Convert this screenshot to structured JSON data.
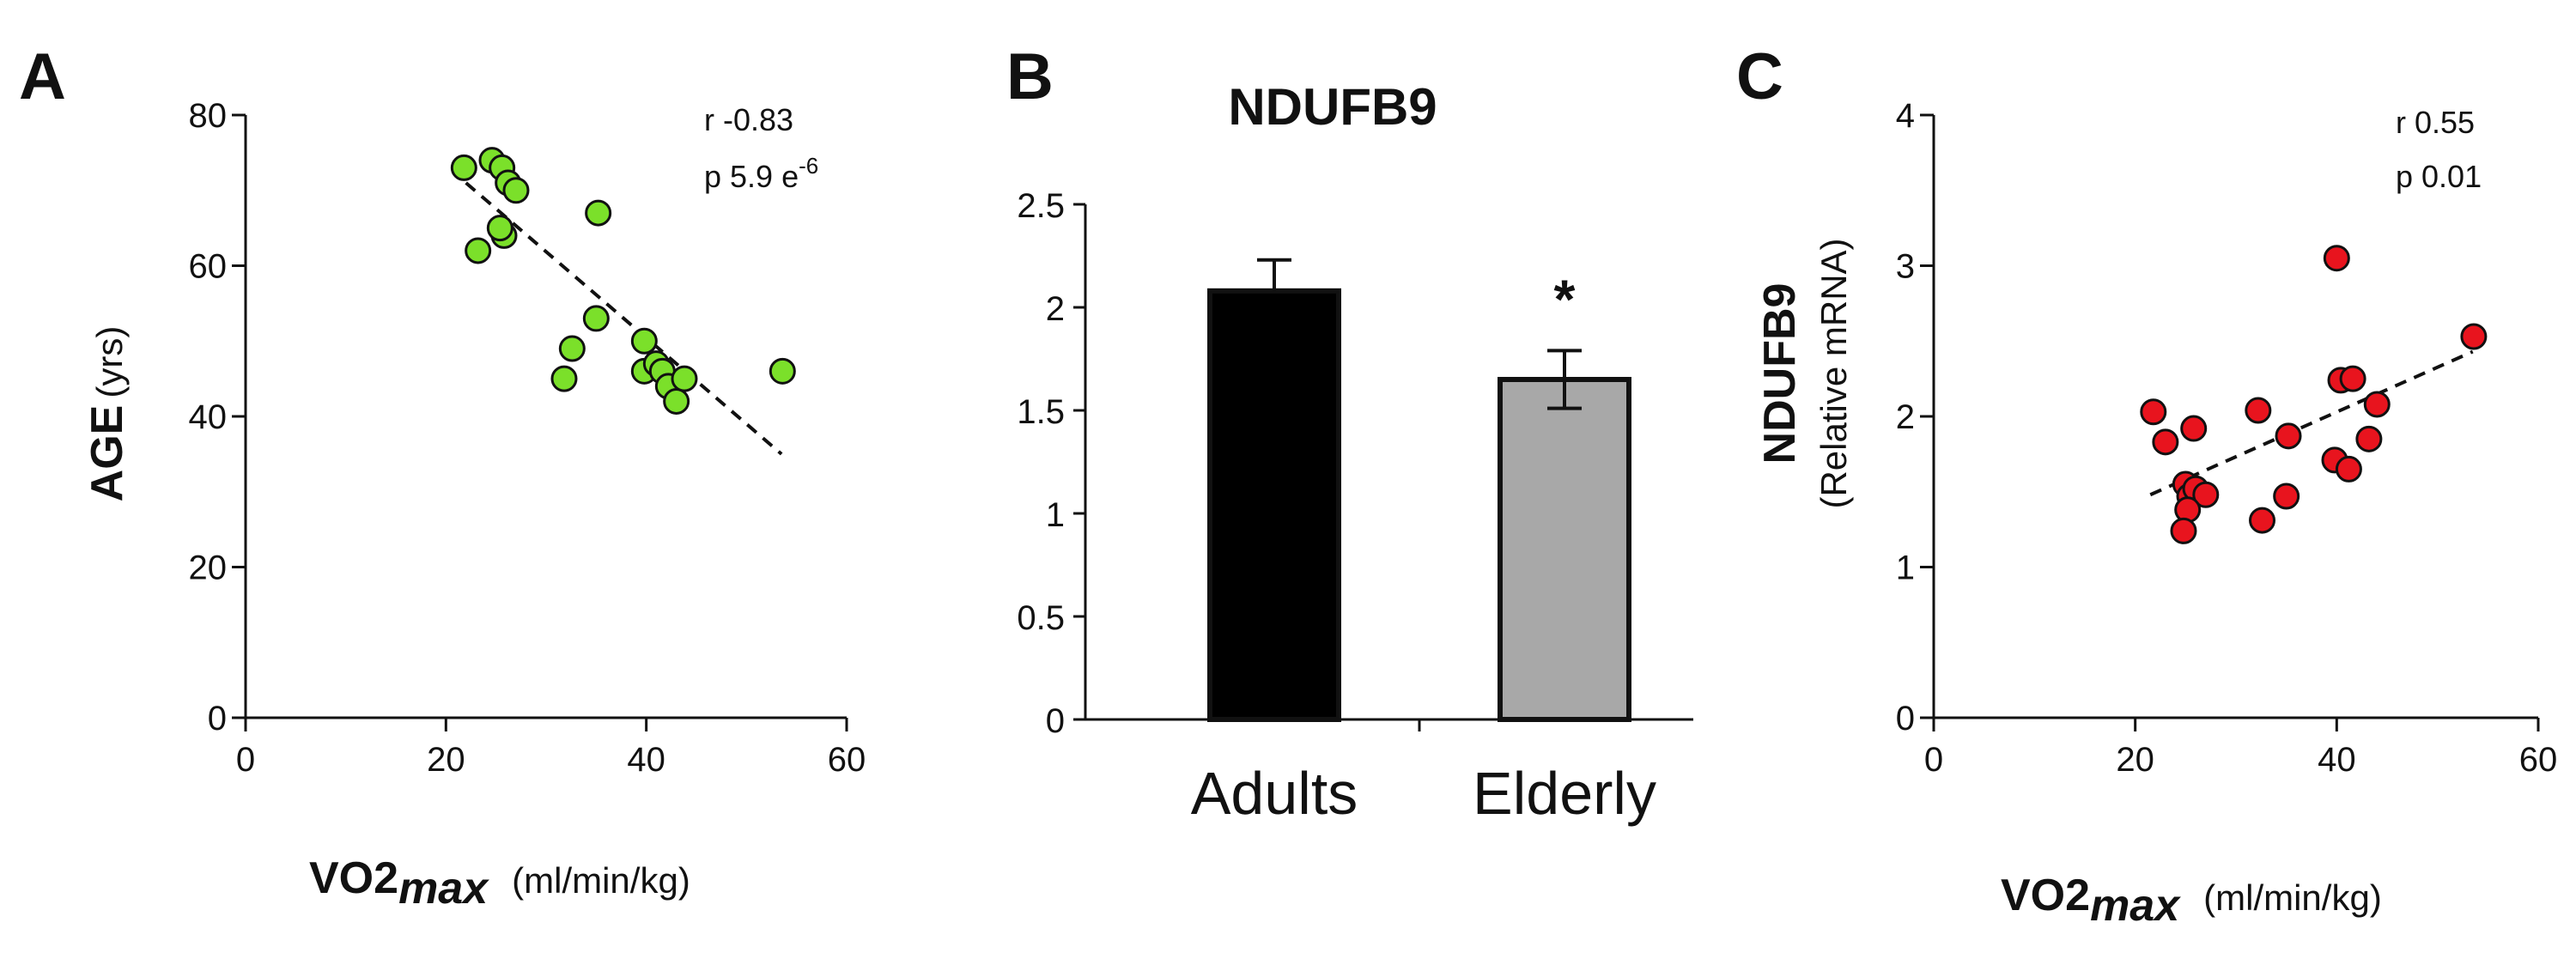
{
  "panels": {
    "A": {
      "letter": "A"
    },
    "B": {
      "letter": "B"
    },
    "C": {
      "letter": "C"
    }
  },
  "chart_data": [
    {
      "type": "scatter",
      "panel": "A",
      "title": "",
      "ylabel_main": "AGE",
      "ylabel_unit": "(yrs)",
      "xlabel_main": "VO2",
      "xlabel_sub": "max",
      "xlabel_unit": "(ml/min/kg)",
      "xlim": [
        0,
        60
      ],
      "ylim": [
        0,
        80
      ],
      "xticks": [
        "0",
        "20",
        "40",
        "60"
      ],
      "yticks": [
        "0",
        "20",
        "40",
        "60",
        "80"
      ],
      "stat_r": "r -0.83",
      "stat_p": "p 5.9 e",
      "stat_p_exp": "-6",
      "point_color": "#7be02a",
      "points": [
        {
          "x": 21.8,
          "y": 73
        },
        {
          "x": 24.6,
          "y": 74
        },
        {
          "x": 25.6,
          "y": 73
        },
        {
          "x": 26.2,
          "y": 71
        },
        {
          "x": 27.0,
          "y": 70
        },
        {
          "x": 23.2,
          "y": 62
        },
        {
          "x": 25.8,
          "y": 64
        },
        {
          "x": 25.4,
          "y": 65
        },
        {
          "x": 35.2,
          "y": 67
        },
        {
          "x": 35.0,
          "y": 53
        },
        {
          "x": 32.6,
          "y": 49
        },
        {
          "x": 31.8,
          "y": 45
        },
        {
          "x": 39.8,
          "y": 50
        },
        {
          "x": 39.8,
          "y": 46
        },
        {
          "x": 41.0,
          "y": 47
        },
        {
          "x": 41.6,
          "y": 46
        },
        {
          "x": 42.2,
          "y": 44
        },
        {
          "x": 43.0,
          "y": 42
        },
        {
          "x": 43.8,
          "y": 45
        },
        {
          "x": 53.6,
          "y": 46
        }
      ],
      "trend": {
        "x1": 22,
        "y1": 71,
        "x2": 53.5,
        "y2": 35
      }
    },
    {
      "type": "bar",
      "panel": "B",
      "title": "NDUFB9",
      "categories": [
        "Adults",
        "Elderly"
      ],
      "values": [
        2.08,
        1.65
      ],
      "errors": [
        0.15,
        0.14
      ],
      "colors": [
        "#000000",
        "#a8a8a8"
      ],
      "ylim": [
        0,
        2.5
      ],
      "yticks": [
        "0",
        "0.5",
        "1",
        "1.5",
        "2",
        "2.5"
      ],
      "significance": "*"
    },
    {
      "type": "scatter",
      "panel": "C",
      "title": "",
      "ylabel_main": "NDUFB9",
      "ylabel_unit": "(Relative mRNA)",
      "xlabel_main": "VO2",
      "xlabel_sub": "max",
      "xlabel_unit": "(ml/min/kg)",
      "xlim": [
        0,
        60
      ],
      "ylim": [
        0,
        4
      ],
      "xticks": [
        "0",
        "20",
        "40",
        "60"
      ],
      "yticks": [
        "0",
        "1",
        "2",
        "3",
        "4"
      ],
      "stat_r": "r 0.55",
      "stat_p": "p 0.01",
      "point_color": "#e8141e",
      "points": [
        {
          "x": 21.8,
          "y": 2.03
        },
        {
          "x": 23.0,
          "y": 1.83
        },
        {
          "x": 25.8,
          "y": 1.92
        },
        {
          "x": 25.0,
          "y": 1.55
        },
        {
          "x": 25.4,
          "y": 1.47
        },
        {
          "x": 26.0,
          "y": 1.52
        },
        {
          "x": 27.0,
          "y": 1.48
        },
        {
          "x": 25.2,
          "y": 1.38
        },
        {
          "x": 24.8,
          "y": 1.24
        },
        {
          "x": 32.2,
          "y": 2.04
        },
        {
          "x": 35.2,
          "y": 1.87
        },
        {
          "x": 35.0,
          "y": 1.47
        },
        {
          "x": 32.6,
          "y": 1.31
        },
        {
          "x": 40.0,
          "y": 3.05
        },
        {
          "x": 40.4,
          "y": 2.24
        },
        {
          "x": 41.6,
          "y": 2.25
        },
        {
          "x": 44.0,
          "y": 2.08
        },
        {
          "x": 43.2,
          "y": 1.85
        },
        {
          "x": 39.8,
          "y": 1.71
        },
        {
          "x": 41.2,
          "y": 1.65
        },
        {
          "x": 53.6,
          "y": 2.53
        }
      ],
      "trend": {
        "x1": 21.5,
        "y1": 1.48,
        "x2": 53.5,
        "y2": 2.43
      }
    }
  ]
}
